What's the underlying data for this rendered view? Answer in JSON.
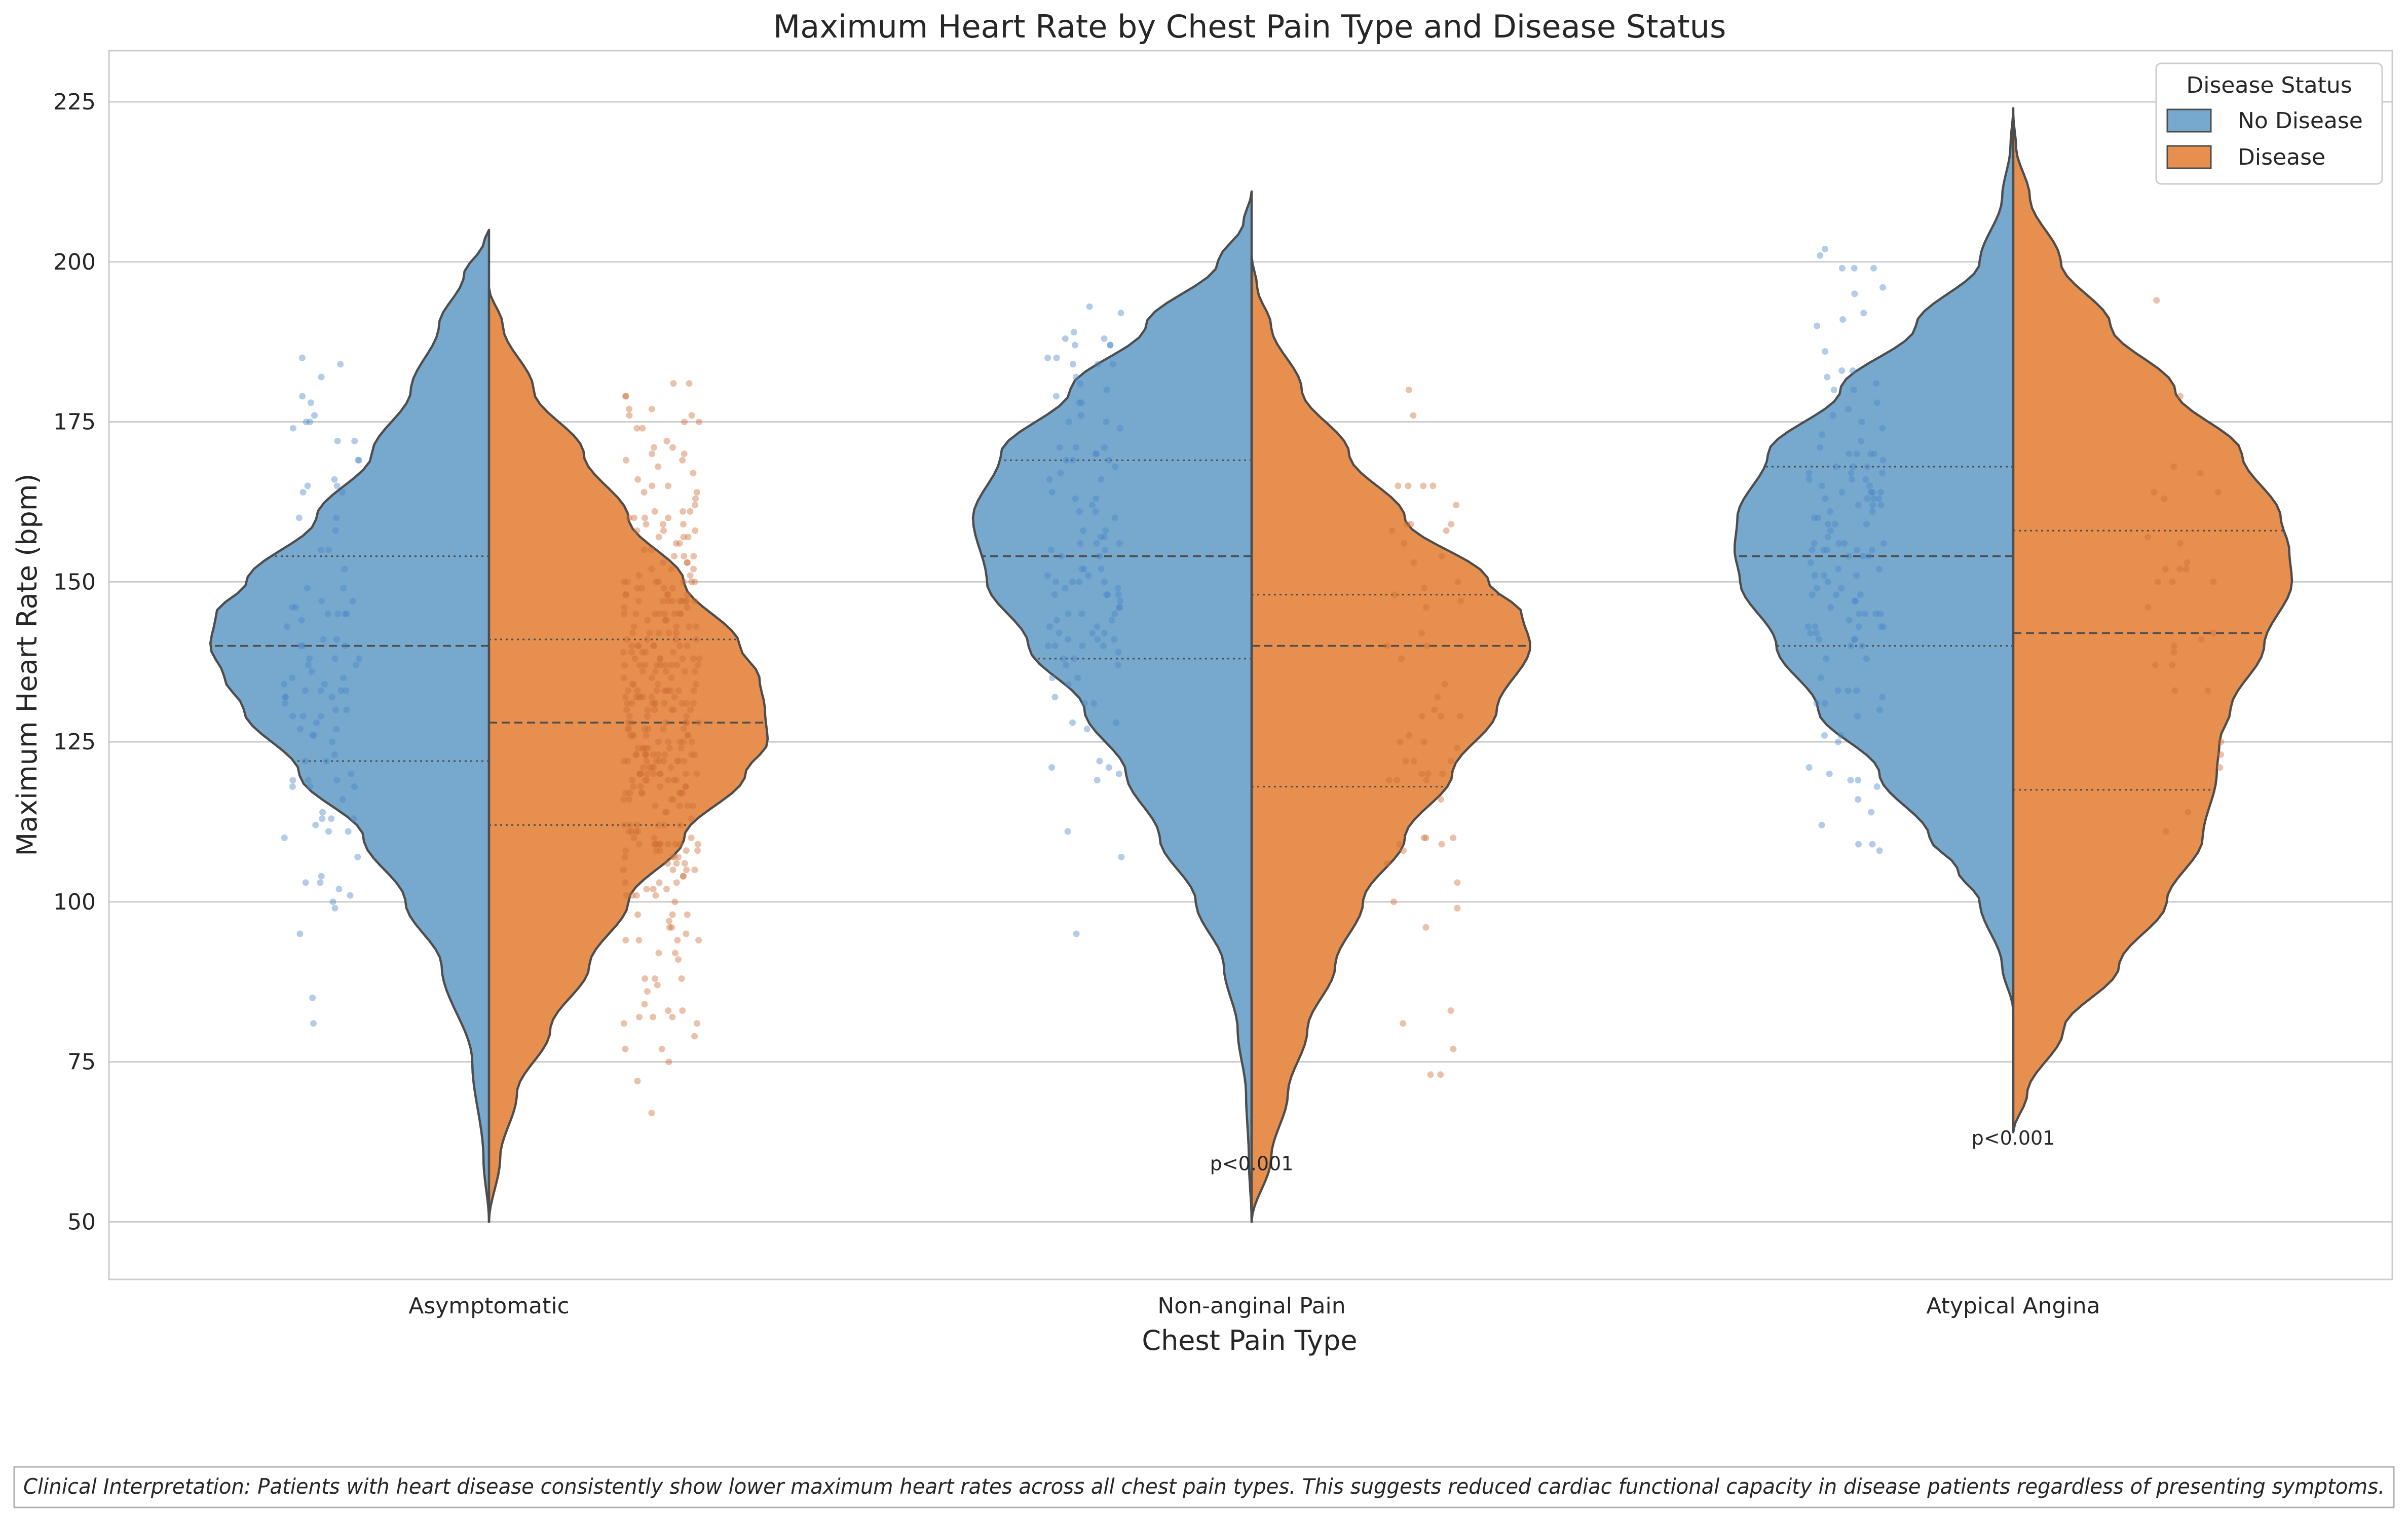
{
  "chart_data": {
    "type": "violin",
    "title": "Maximum Heart Rate by Chest Pain Type and Disease Status",
    "xlabel": "Chest Pain Type",
    "ylabel": "Maximum Heart Rate (bpm)",
    "categories": [
      "Asymptomatic",
      "Non-anginal Pain",
      "Atypical Angina"
    ],
    "yticks": [
      50,
      75,
      100,
      125,
      150,
      175,
      200,
      225
    ],
    "ylim": [
      41,
      233
    ],
    "grid": "horizontal",
    "legend": {
      "title": "Disease Status",
      "placement": "top-right",
      "entries": [
        {
          "label": "No Disease",
          "color": "#76a9cd"
        },
        {
          "label": "Disease",
          "color": "#e78f4e"
        }
      ]
    },
    "colors": {
      "no_disease": "#76a9cd",
      "disease": "#e78f4e",
      "outline": "#4d4d4d",
      "point_blue": "#4a86c8",
      "point_orange": "#cd6d38"
    },
    "series": [
      {
        "name": "No Disease",
        "side": "left",
        "violins": [
          {
            "category": "Asymptomatic",
            "range": [
              50,
              205
            ],
            "q1": 122,
            "median": 140,
            "q3": 154,
            "profile": [
              [
                50,
                0
              ],
              [
                60,
                0.02
              ],
              [
                75,
                0.06
              ],
              [
                90,
                0.17
              ],
              [
                100,
                0.3
              ],
              [
                110,
                0.45
              ],
              [
                120,
                0.68
              ],
              [
                130,
                0.88
              ],
              [
                135,
                0.95
              ],
              [
                140,
                1.0
              ],
              [
                145,
                0.98
              ],
              [
                150,
                0.87
              ],
              [
                160,
                0.62
              ],
              [
                170,
                0.42
              ],
              [
                180,
                0.28
              ],
              [
                190,
                0.18
              ],
              [
                198,
                0.09
              ],
              [
                203,
                0.02
              ],
              [
                205,
                0
              ]
            ]
          },
          {
            "category": "Non-anginal Pain",
            "range": [
              50,
              211
            ],
            "q1": 138,
            "median": 154,
            "q3": 169,
            "profile": [
              [
                50,
                0
              ],
              [
                60,
                0.01
              ],
              [
                70,
                0.02
              ],
              [
                80,
                0.05
              ],
              [
                90,
                0.1
              ],
              [
                100,
                0.2
              ],
              [
                110,
                0.33
              ],
              [
                120,
                0.45
              ],
              [
                130,
                0.6
              ],
              [
                140,
                0.8
              ],
              [
                150,
                0.95
              ],
              [
                160,
                1.0
              ],
              [
                170,
                0.9
              ],
              [
                180,
                0.65
              ],
              [
                190,
                0.38
              ],
              [
                200,
                0.12
              ],
              [
                206,
                0.03
              ],
              [
                211,
                0
              ]
            ]
          },
          {
            "category": "Atypical Angina",
            "range": [
              83,
              224
            ],
            "q1": 140,
            "median": 154,
            "q3": 168,
            "profile": [
              [
                83,
                0
              ],
              [
                90,
                0.04
              ],
              [
                100,
                0.12
              ],
              [
                105,
                0.2
              ],
              [
                110,
                0.3
              ],
              [
                120,
                0.48
              ],
              [
                130,
                0.7
              ],
              [
                140,
                0.85
              ],
              [
                150,
                0.98
              ],
              [
                155,
                1.0
              ],
              [
                160,
                0.99
              ],
              [
                170,
                0.88
              ],
              [
                180,
                0.62
              ],
              [
                190,
                0.35
              ],
              [
                200,
                0.12
              ],
              [
                210,
                0.04
              ],
              [
                218,
                0.01
              ],
              [
                224,
                0
              ]
            ]
          }
        ]
      },
      {
        "name": "Disease",
        "side": "right",
        "violins": [
          {
            "category": "Asymptomatic",
            "range": [
              50,
              196
            ],
            "q1": 112,
            "median": 128,
            "q3": 141,
            "profile": [
              [
                50,
                0
              ],
              [
                60,
                0.04
              ],
              [
                70,
                0.1
              ],
              [
                80,
                0.22
              ],
              [
                90,
                0.36
              ],
              [
                100,
                0.5
              ],
              [
                110,
                0.7
              ],
              [
                120,
                0.92
              ],
              [
                125,
                1.0
              ],
              [
                130,
                0.99
              ],
              [
                135,
                0.97
              ],
              [
                140,
                0.9
              ],
              [
                150,
                0.7
              ],
              [
                160,
                0.5
              ],
              [
                170,
                0.34
              ],
              [
                180,
                0.16
              ],
              [
                190,
                0.05
              ],
              [
                196,
                0
              ]
            ]
          },
          {
            "category": "Non-anginal Pain",
            "range": [
              50,
              201
            ],
            "q1": 118,
            "median": 140,
            "q3": 148,
            "profile": [
              [
                50,
                0
              ],
              [
                60,
                0.07
              ],
              [
                70,
                0.13
              ],
              [
                80,
                0.2
              ],
              [
                90,
                0.3
              ],
              [
                100,
                0.4
              ],
              [
                110,
                0.55
              ],
              [
                120,
                0.72
              ],
              [
                130,
                0.88
              ],
              [
                140,
                1.0
              ],
              [
                145,
                0.97
              ],
              [
                150,
                0.85
              ],
              [
                160,
                0.55
              ],
              [
                170,
                0.35
              ],
              [
                180,
                0.18
              ],
              [
                190,
                0.07
              ],
              [
                196,
                0.02
              ],
              [
                201,
                0
              ]
            ]
          },
          {
            "category": "Atypical Angina",
            "range": [
              64,
              223
            ],
            "q1": 117.5,
            "median": 142,
            "q3": 158,
            "profile": [
              [
                64,
                0
              ],
              [
                70,
                0.05
              ],
              [
                80,
                0.18
              ],
              [
                90,
                0.38
              ],
              [
                100,
                0.55
              ],
              [
                110,
                0.68
              ],
              [
                120,
                0.73
              ],
              [
                125,
                0.74
              ],
              [
                130,
                0.78
              ],
              [
                140,
                0.9
              ],
              [
                150,
                1.0
              ],
              [
                155,
                0.99
              ],
              [
                160,
                0.96
              ],
              [
                170,
                0.82
              ],
              [
                180,
                0.58
              ],
              [
                190,
                0.35
              ],
              [
                200,
                0.17
              ],
              [
                210,
                0.06
              ],
              [
                218,
                0.01
              ],
              [
                223,
                0
              ]
            ]
          }
        ]
      }
    ],
    "annotations": [
      {
        "category": "Non-anginal Pain",
        "text": "p<0.001",
        "y": 59
      },
      {
        "category": "Atypical Angina",
        "text": "p<0.001",
        "y": 63
      }
    ],
    "point_clouds": [
      {
        "category": "Asymptomatic",
        "series": "No Disease",
        "count": 100,
        "mean": 139,
        "sd": 24,
        "min": 69,
        "max": 186
      },
      {
        "category": "Asymptomatic",
        "series": "Disease",
        "count": 360,
        "mean": 128,
        "sd": 22,
        "min": 66,
        "max": 182
      },
      {
        "category": "Non-anginal Pain",
        "series": "No Disease",
        "count": 110,
        "mean": 153,
        "sd": 22,
        "min": 80,
        "max": 194
      },
      {
        "category": "Non-anginal Pain",
        "series": "Disease",
        "count": 60,
        "mean": 134,
        "sd": 24,
        "min": 70,
        "max": 180
      },
      {
        "category": "Atypical Angina",
        "series": "No Disease",
        "count": 130,
        "mean": 154,
        "sd": 20,
        "min": 98,
        "max": 202
      },
      {
        "category": "Atypical Angina",
        "series": "Disease",
        "count": 30,
        "mean": 139,
        "sd": 26,
        "min": 93,
        "max": 195
      }
    ]
  },
  "footnote": "Clinical Interpretation: Patients with heart disease consistently show lower maximum heart rates across all chest pain types. This suggests reduced cardiac functional capacity in disease patients regardless of presenting symptoms."
}
